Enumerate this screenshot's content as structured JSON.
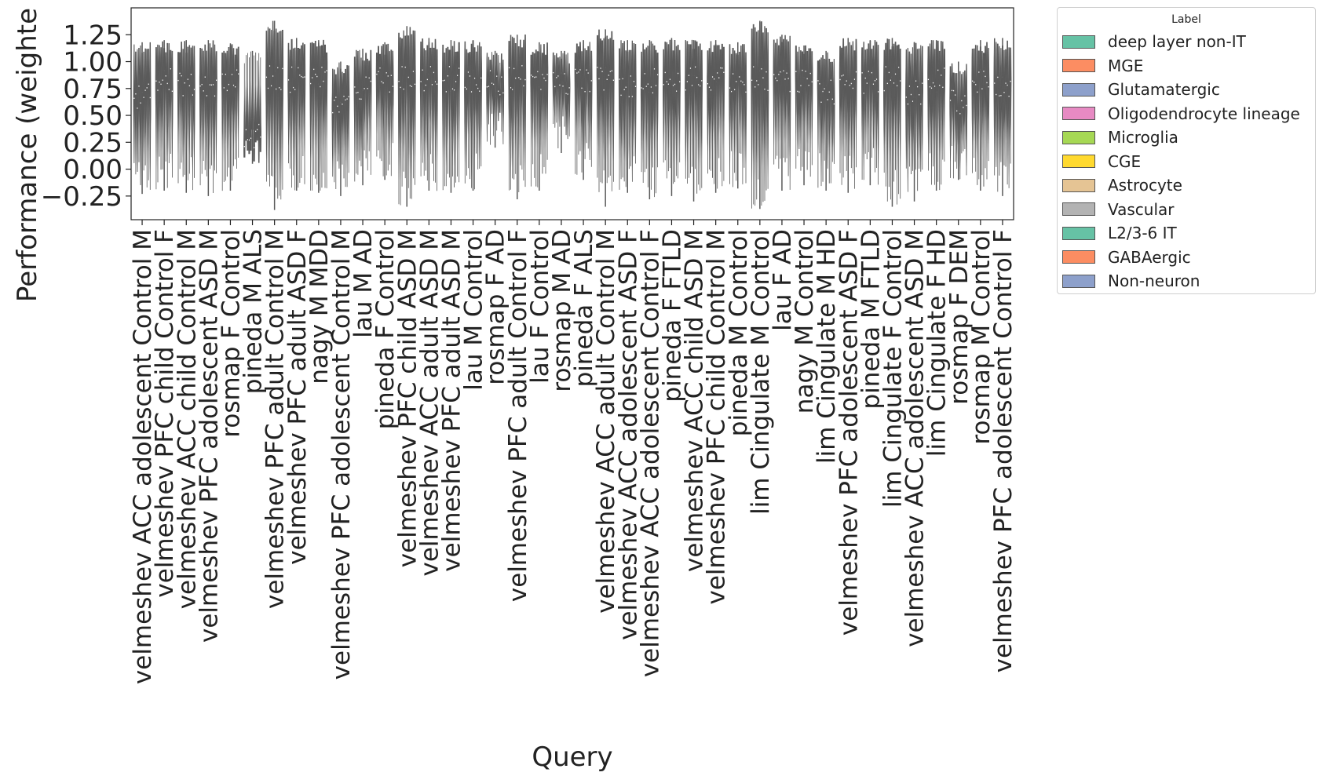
{
  "chart_data": {
    "type": "violin",
    "xlabel": "Query",
    "ylabel": "Performance (weighte",
    "ylim": [
      -0.47,
      1.5
    ],
    "yticks": [
      -0.25,
      0.0,
      0.25,
      0.5,
      0.75,
      1.0,
      1.25
    ],
    "ytick_labels": [
      "−0.25",
      "0.00",
      "0.25",
      "0.50",
      "0.75",
      "1.00",
      "1.25"
    ],
    "grid": false,
    "legend_position": "outside-right",
    "legend": {
      "title": "Label",
      "items": [
        {
          "label": "deep layer non-IT",
          "color": "#66c2a5"
        },
        {
          "label": "MGE",
          "color": "#fc8d62"
        },
        {
          "label": "Glutamatergic",
          "color": "#8da0cb"
        },
        {
          "label": "Oligodendrocyte lineage",
          "color": "#e78ac3"
        },
        {
          "label": "Microglia",
          "color": "#a6d854"
        },
        {
          "label": "CGE",
          "color": "#ffd92f"
        },
        {
          "label": "Astrocyte",
          "color": "#e5c494"
        },
        {
          "label": "Vascular",
          "color": "#b3b3b3"
        },
        {
          "label": "L2/3-6 IT",
          "color": "#66c2a5"
        },
        {
          "label": "GABAergic",
          "color": "#fc8d62"
        },
        {
          "label": "Non-neuron",
          "color": "#8da0cb"
        }
      ]
    },
    "violin_color": "#5a5a5a",
    "categories": [
      "velmeshev ACC adolescent Control M",
      "velmeshev PFC child Control F",
      "velmeshev ACC child Control M",
      "velmeshev PFC adolescent ASD M",
      "rosmap F Control",
      "pineda M ALS",
      "velmeshev PFC adult Control M",
      "velmeshev PFC adult ASD F",
      "nagy M MDD",
      "velmeshev PFC adolescent Control M",
      "lau M AD",
      "pineda F Control",
      "velmeshev PFC child ASD M",
      "velmeshev ACC adult ASD M",
      "velmeshev PFC adult ASD M",
      "lau M Control",
      "rosmap F AD",
      "velmeshev PFC adult Control F",
      "lau F Control",
      "rosmap M AD",
      "pineda F ALS",
      "velmeshev ACC adult Control M",
      "velmeshev ACC adolescent ASD F",
      "velmeshev ACC adolescent Control F",
      "pineda F FTLD",
      "velmeshev ACC child ASD M",
      "velmeshev PFC child Control M",
      "pineda M Control",
      "lim Cingulate M Control",
      "lau F AD",
      "nagy M Control",
      "lim Cingulate M HD",
      "velmeshev PFC adolescent ASD F",
      "pineda M FTLD",
      "lim Cingulate F Control",
      "velmeshev ACC adolescent ASD M",
      "lim Cingulate F HD",
      "rosmap F DEM",
      "rosmap M Control",
      "velmeshev PFC adolescent Control F"
    ],
    "series_summary": [
      {
        "category": "velmeshev ACC adolescent Control M",
        "median": 0.8,
        "min": -0.23,
        "max": 1.18
      },
      {
        "category": "velmeshev PFC child Control F",
        "median": 0.95,
        "min": -0.2,
        "max": 1.2
      },
      {
        "category": "velmeshev ACC child Control M",
        "median": 0.93,
        "min": -0.22,
        "max": 1.2
      },
      {
        "category": "velmeshev PFC adolescent ASD M",
        "median": 0.93,
        "min": -0.25,
        "max": 1.2
      },
      {
        "category": "rosmap F Control",
        "median": 0.97,
        "min": -0.2,
        "max": 1.17
      },
      {
        "category": "pineda M ALS",
        "median": 0.42,
        "min": 0.05,
        "max": 1.1
      },
      {
        "category": "velmeshev PFC adult Control M",
        "median": 0.98,
        "min": -0.38,
        "max": 1.38
      },
      {
        "category": "velmeshev PFC adult ASD F",
        "median": 0.95,
        "min": -0.2,
        "max": 1.22
      },
      {
        "category": "nagy M MDD",
        "median": 0.95,
        "min": -0.22,
        "max": 1.2
      },
      {
        "category": "velmeshev PFC adolescent Control M",
        "median": 0.7,
        "min": -0.25,
        "max": 1.0
      },
      {
        "category": "lau M AD",
        "median": 0.88,
        "min": -0.15,
        "max": 1.12
      },
      {
        "category": "pineda F Control",
        "median": 0.95,
        "min": -0.1,
        "max": 1.18
      },
      {
        "category": "velmeshev PFC child ASD M",
        "median": 0.97,
        "min": -0.35,
        "max": 1.33
      },
      {
        "category": "velmeshev ACC adult ASD M",
        "median": 0.97,
        "min": -0.2,
        "max": 1.22
      },
      {
        "category": "velmeshev PFC adult ASD M",
        "median": 0.97,
        "min": -0.22,
        "max": 1.2
      },
      {
        "category": "lau M Control",
        "median": 0.95,
        "min": -0.2,
        "max": 1.2
      },
      {
        "category": "rosmap F AD",
        "median": 0.92,
        "min": 0.2,
        "max": 1.1
      },
      {
        "category": "velmeshev PFC adult Control F",
        "median": 0.98,
        "min": -0.28,
        "max": 1.25
      },
      {
        "category": "lau F Control",
        "median": 0.95,
        "min": -0.2,
        "max": 1.18
      },
      {
        "category": "rosmap M AD",
        "median": 0.9,
        "min": 0.15,
        "max": 1.1
      },
      {
        "category": "pineda F ALS",
        "median": 0.95,
        "min": -0.1,
        "max": 1.2
      },
      {
        "category": "velmeshev ACC adult Control M",
        "median": 0.97,
        "min": -0.35,
        "max": 1.3
      },
      {
        "category": "velmeshev ACC adolescent ASD F",
        "median": 0.92,
        "min": -0.22,
        "max": 1.2
      },
      {
        "category": "velmeshev ACC adolescent Control F",
        "median": 0.95,
        "min": -0.28,
        "max": 1.2
      },
      {
        "category": "pineda F FTLD",
        "median": 0.97,
        "min": -0.25,
        "max": 1.22
      },
      {
        "category": "velmeshev ACC child ASD M",
        "median": 0.97,
        "min": -0.3,
        "max": 1.2
      },
      {
        "category": "velmeshev PFC child Control M",
        "median": 0.96,
        "min": -0.22,
        "max": 1.2
      },
      {
        "category": "pineda M Control",
        "median": 0.95,
        "min": -0.18,
        "max": 1.18
      },
      {
        "category": "lim Cingulate M Control",
        "median": 0.97,
        "min": -0.37,
        "max": 1.38
      },
      {
        "category": "lau F AD",
        "median": 0.95,
        "min": -0.2,
        "max": 1.25
      },
      {
        "category": "nagy M Control",
        "median": 0.92,
        "min": -0.15,
        "max": 1.15
      },
      {
        "category": "lim Cingulate M HD",
        "median": 0.85,
        "min": -0.2,
        "max": 1.1
      },
      {
        "category": "velmeshev PFC adolescent ASD F",
        "median": 0.93,
        "min": -0.22,
        "max": 1.22
      },
      {
        "category": "pineda M FTLD",
        "median": 0.95,
        "min": -0.15,
        "max": 1.2
      },
      {
        "category": "lim Cingulate F Control",
        "median": 0.97,
        "min": -0.35,
        "max": 1.22
      },
      {
        "category": "velmeshev ACC adolescent ASD M",
        "median": 0.85,
        "min": -0.3,
        "max": 1.18
      },
      {
        "category": "lim Cingulate F HD",
        "median": 0.95,
        "min": -0.2,
        "max": 1.2
      },
      {
        "category": "rosmap F DEM",
        "median": 0.75,
        "min": -0.1,
        "max": 1.0
      },
      {
        "category": "rosmap M Control",
        "median": 0.95,
        "min": -0.2,
        "max": 1.2
      },
      {
        "category": "velmeshev PFC adolescent Control F",
        "median": 0.92,
        "min": -0.25,
        "max": 1.22
      }
    ]
  }
}
